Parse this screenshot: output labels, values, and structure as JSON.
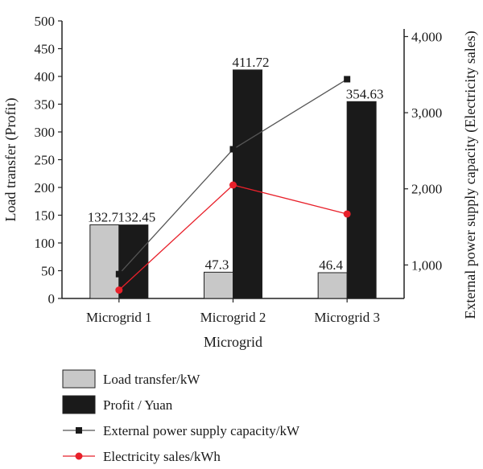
{
  "chart_data": {
    "type": "bar",
    "categories": [
      "Microgrid 1",
      "Microgrid 2",
      "Microgrid 3"
    ],
    "xlabel": "Microgrid",
    "ylabel": "Load transfer (Profit)",
    "ylabel_right": "External power supply capacity (Electricity sales)",
    "ylim": [
      0,
      500
    ],
    "ylim_right": [
      560,
      4100
    ],
    "yticks": [
      "0",
      "50",
      "100",
      "150",
      "200",
      "250",
      "300",
      "350",
      "400",
      "450",
      "500"
    ],
    "yticks_right": [
      "1,000",
      "2,000",
      "3,000",
      "4,000"
    ],
    "yticks_right_values": [
      1000,
      2000,
      3000,
      4000
    ],
    "legend_position": "bottom",
    "grid": false,
    "series": [
      {
        "name": "Load transfer/kW",
        "kind": "bar",
        "axis": "left",
        "color": "#c8c8c8",
        "values": [
          132.7,
          47.3,
          46.4
        ],
        "labels": [
          "132.7",
          "47.3",
          "46.4"
        ]
      },
      {
        "name": "Profit / Yuan",
        "kind": "bar",
        "axis": "left",
        "color": "#1a1a1a",
        "values": [
          132.45,
          411.72,
          354.63
        ],
        "labels": [
          "132.45",
          "411.72",
          "354.63"
        ]
      },
      {
        "name": "External power supply capacity/kW",
        "kind": "line",
        "marker": "square",
        "axis": "right",
        "color": "#555555",
        "values": [
          880,
          2520,
          3440
        ]
      },
      {
        "name": "Electricity sales/kWh",
        "kind": "line",
        "marker": "circle",
        "axis": "right",
        "color": "#e8202a",
        "values": [
          670,
          2050,
          1670
        ]
      }
    ]
  }
}
